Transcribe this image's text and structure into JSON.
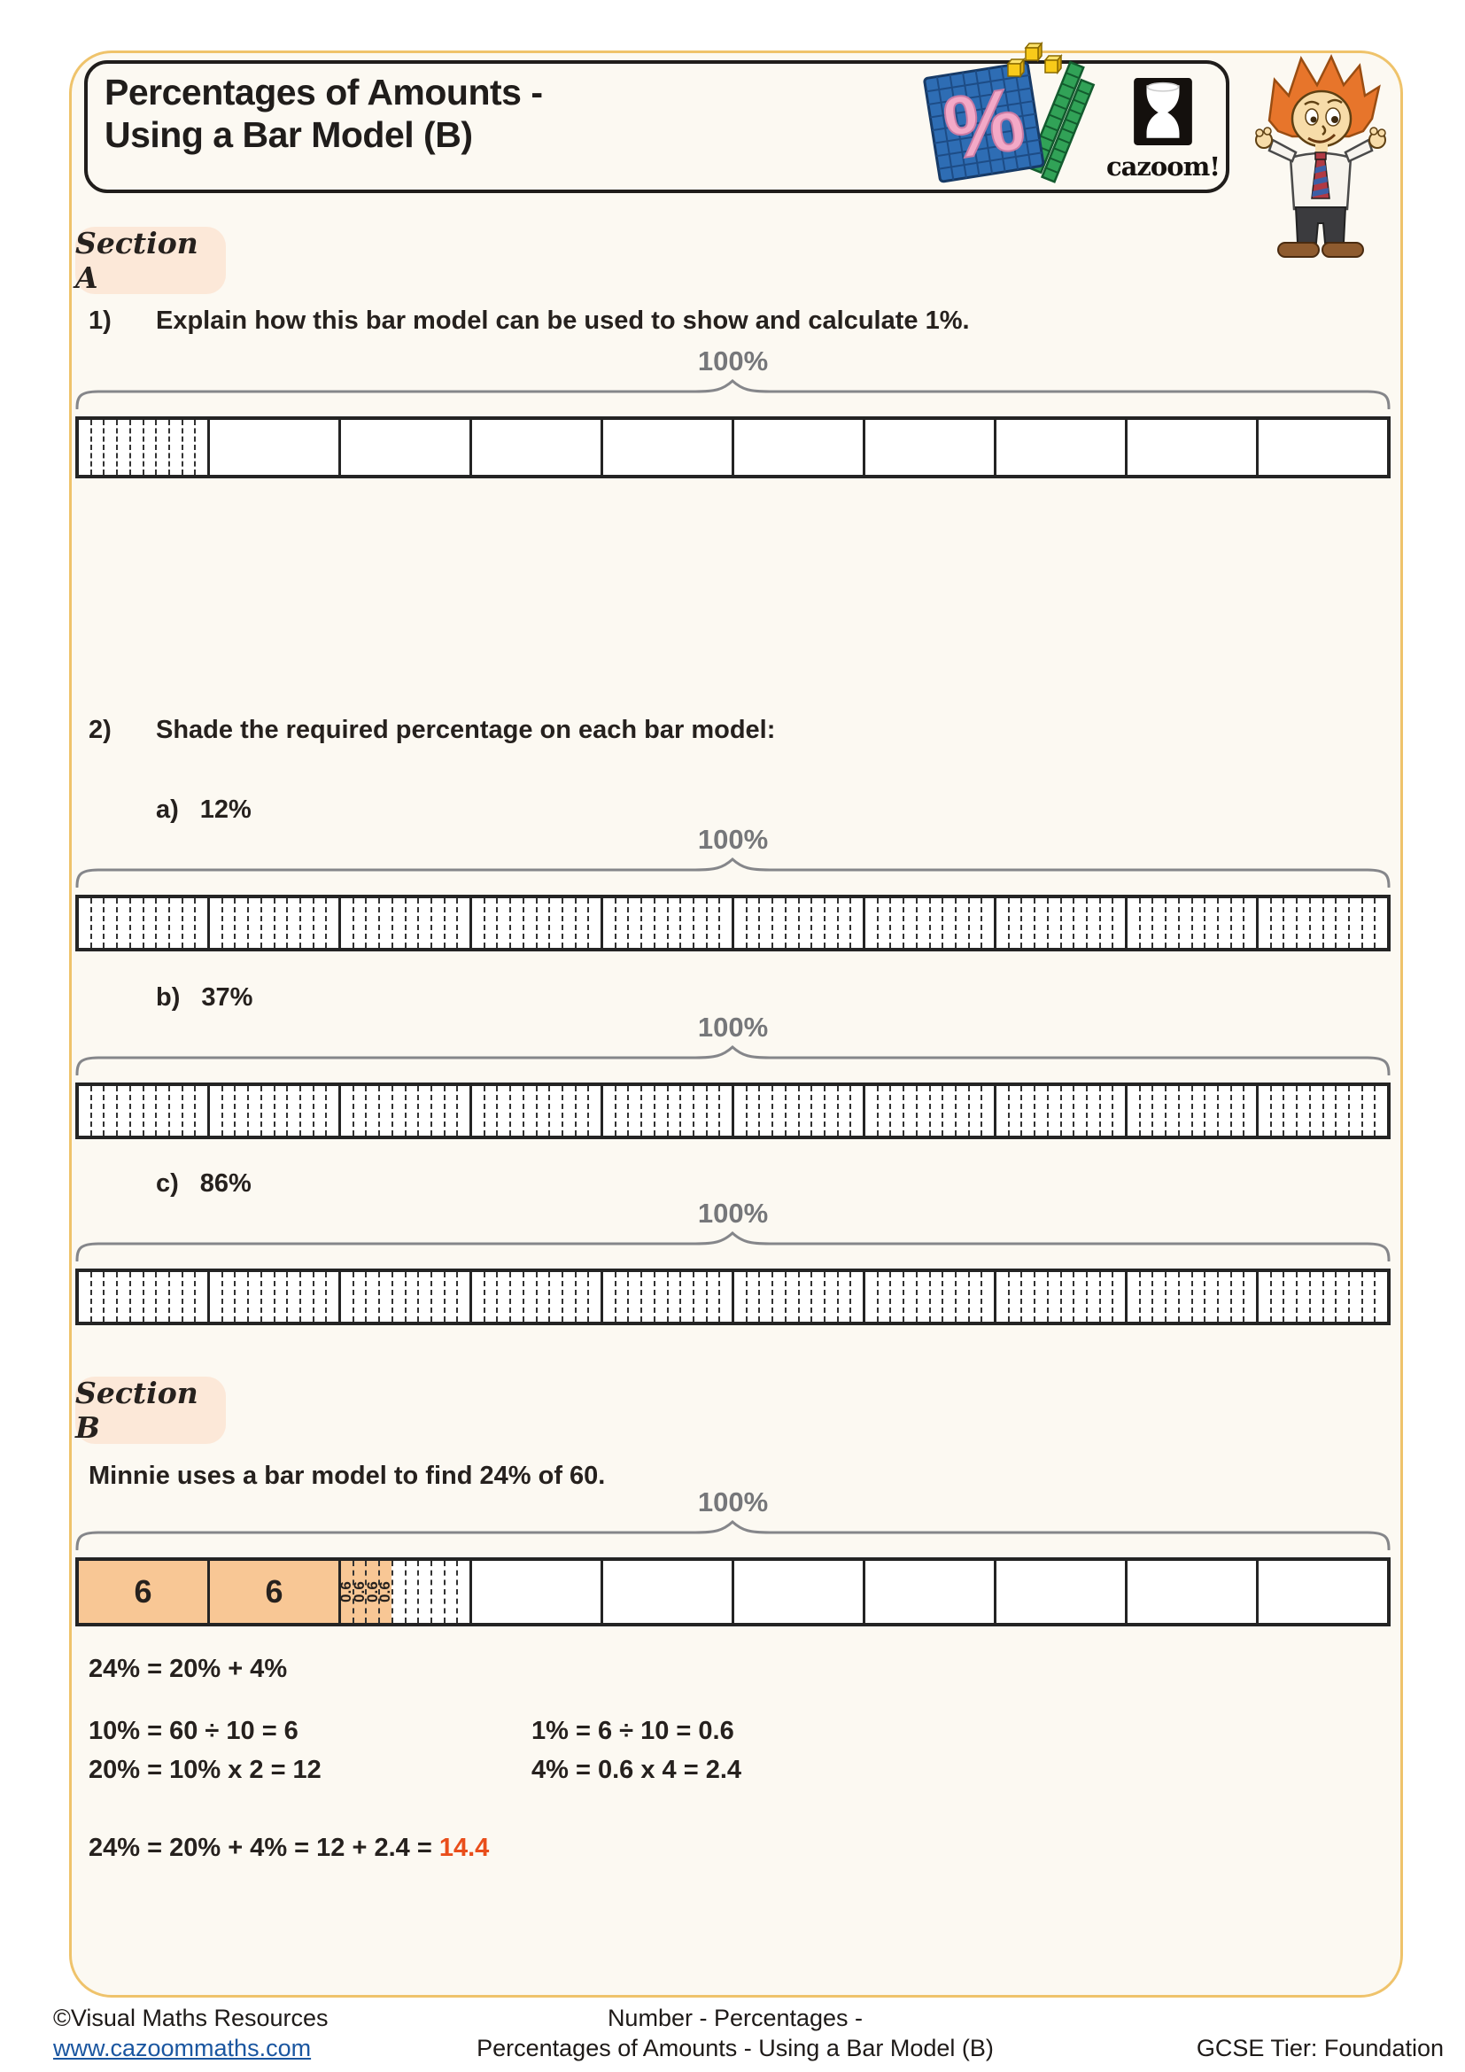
{
  "header": {
    "title_line1": "Percentages of Amounts -",
    "title_line2": "Using a Bar Model (B)",
    "brand_text": "cazoom!"
  },
  "bar_label": "100%",
  "section_a": {
    "badge": "Section A",
    "q1": {
      "number": "1)",
      "text": "Explain how this bar model can be used to show and calculate 1%."
    },
    "q2": {
      "number": "2)",
      "text": "Shade the required percentage on each bar model:",
      "parts": [
        {
          "letter": "a)",
          "percent": "12%"
        },
        {
          "letter": "b)",
          "percent": "37%"
        },
        {
          "letter": "c)",
          "percent": "86%"
        }
      ]
    }
  },
  "section_b": {
    "badge": "Section B",
    "intro": "Minnie uses a bar model to find 24% of 60.",
    "working_line1": "24% = 20% + 4%",
    "working_left": [
      "10% = 60 ÷ 10 = 6",
      "20% = 10% x 2 = 12"
    ],
    "working_right": [
      "1% = 6 ÷ 10 = 0.6",
      "4% = 0.6 x 4 = 2.4"
    ],
    "final_prefix": "24% = 20% + 4% = 12 + 2.4 = ",
    "final_answer": "14.4"
  },
  "bars": {
    "q1": {
      "cells": [
        {
          "type": "subdivided"
        },
        {},
        {},
        {},
        {},
        {},
        {},
        {},
        {},
        {}
      ]
    },
    "q2": {
      "cells": [
        {
          "type": "subdivided"
        },
        {
          "type": "subdivided"
        },
        {
          "type": "subdivided"
        },
        {
          "type": "subdivided"
        },
        {
          "type": "subdivided"
        },
        {
          "type": "subdivided"
        },
        {
          "type": "subdivided"
        },
        {
          "type": "subdivided"
        },
        {
          "type": "subdivided"
        },
        {
          "type": "subdivided"
        }
      ]
    },
    "sb": {
      "cells": [
        {
          "type": "filled",
          "label": "6"
        },
        {
          "type": "filled",
          "label": "6"
        },
        {
          "type": "subdivided",
          "filled_subs": 4,
          "sub_label": "0.6"
        },
        {},
        {},
        {},
        {},
        {},
        {},
        {}
      ]
    }
  },
  "footer": {
    "copyright": "©Visual Maths Resources",
    "website": "www.cazoommaths.com",
    "center_line1": "Number - Percentages -",
    "center_line2": "Percentages of Amounts - Using a Bar Model (B)",
    "tier": "GCSE Tier: Foundation"
  },
  "colors": {
    "frame_border": "#EFC36B",
    "badge_bg": "#FCE8D8",
    "shade_fill": "#F8C795",
    "answer_orange": "#E94E1B",
    "link_blue": "#1A56A0",
    "label_gray": "#76777A"
  }
}
